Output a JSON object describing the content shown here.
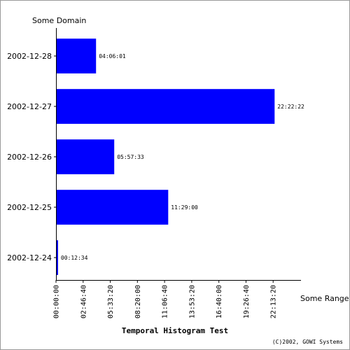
{
  "chart_data": {
    "type": "bar",
    "orientation": "horizontal",
    "title": "Temporal Histogram Test",
    "ylabel": "Some Domain",
    "xlabel": "Some Range",
    "copyright": "(C)2002, GOWI Systems",
    "grid": false,
    "legend": "none",
    "bar_color": "#0000ff",
    "categories": [
      "2002-12-28",
      "2002-12-27",
      "2002-12-26",
      "2002-12-25",
      "2002-12-24"
    ],
    "values": [
      14761,
      80542,
      21453,
      41340,
      754
    ],
    "value_labels": [
      "04:06:01",
      "22:22:22",
      "05:57:33",
      "11:29:00",
      "00:12:34"
    ],
    "xlim": [
      0,
      88200
    ],
    "x_ticks": [
      {
        "value": 0,
        "label": "00:00:00"
      },
      {
        "value": 10000,
        "label": "02:46:40"
      },
      {
        "value": 20000,
        "label": "05:33:20"
      },
      {
        "value": 30000,
        "label": "08:20:00"
      },
      {
        "value": 40000,
        "label": "11:06:40"
      },
      {
        "value": 50000,
        "label": "13:53:20"
      },
      {
        "value": 60000,
        "label": "16:40:00"
      },
      {
        "value": 70000,
        "label": "19:26:40"
      },
      {
        "value": 80000,
        "label": "22:13:20"
      }
    ]
  }
}
